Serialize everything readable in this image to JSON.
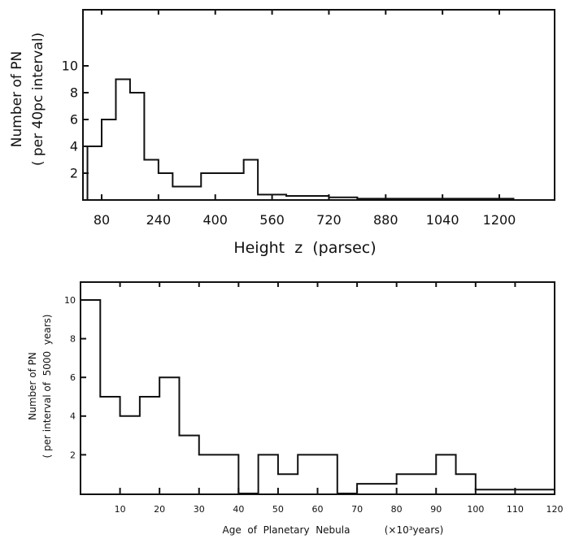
{
  "chart_data": [
    {
      "type": "bar",
      "style": "histogram-step",
      "xlabel": "Height  z  (parsec)",
      "ylabel": "Number of PN",
      "ylabel2": "( per 40pc interval)",
      "x_ticks": [
        80,
        240,
        400,
        560,
        720,
        880,
        1040,
        1200
      ],
      "y_ticks": [
        2,
        4,
        6,
        8,
        10
      ],
      "xlim": [
        40,
        1300
      ],
      "ylim": [
        0,
        12
      ],
      "bins": [
        {
          "x0": 40,
          "x1": 80,
          "value": 4
        },
        {
          "x0": 80,
          "x1": 120,
          "value": 6
        },
        {
          "x0": 120,
          "x1": 160,
          "value": 9
        },
        {
          "x0": 160,
          "x1": 200,
          "value": 8
        },
        {
          "x0": 200,
          "x1": 240,
          "value": 3
        },
        {
          "x0": 240,
          "x1": 280,
          "value": 2
        },
        {
          "x0": 280,
          "x1": 360,
          "value": 1
        },
        {
          "x0": 360,
          "x1": 480,
          "value": 2
        },
        {
          "x0": 480,
          "x1": 520,
          "value": 3
        },
        {
          "x0": 520,
          "x1": 600,
          "value": 0.4
        },
        {
          "x0": 600,
          "x1": 720,
          "value": 0.3
        },
        {
          "x0": 720,
          "x1": 800,
          "value": 0.2
        },
        {
          "x0": 800,
          "x1": 1240,
          "value": 0.1
        }
      ]
    },
    {
      "type": "bar",
      "style": "histogram-step",
      "xlabel": "Age  of  Planetary  Nebula",
      "xlabel_unit": "(×10³years)",
      "ylabel": "Number of PN",
      "ylabel2": "( per interval of  5000  years)",
      "x_ticks": [
        10,
        20,
        30,
        40,
        50,
        60,
        70,
        80,
        90,
        100,
        110,
        120
      ],
      "y_ticks": [
        2,
        4,
        6,
        8,
        10
      ],
      "xlim": [
        0,
        120
      ],
      "ylim": [
        0,
        11
      ],
      "bins": [
        {
          "x0": 0,
          "x1": 5,
          "value": 10
        },
        {
          "x0": 5,
          "x1": 10,
          "value": 5
        },
        {
          "x0": 10,
          "x1": 15,
          "value": 4
        },
        {
          "x0": 15,
          "x1": 20,
          "value": 5
        },
        {
          "x0": 20,
          "x1": 25,
          "value": 6
        },
        {
          "x0": 25,
          "x1": 30,
          "value": 3
        },
        {
          "x0": 30,
          "x1": 40,
          "value": 2
        },
        {
          "x0": 40,
          "x1": 45,
          "value": 0
        },
        {
          "x0": 45,
          "x1": 50,
          "value": 2
        },
        {
          "x0": 50,
          "x1": 55,
          "value": 1
        },
        {
          "x0": 55,
          "x1": 65,
          "value": 2
        },
        {
          "x0": 65,
          "x1": 70,
          "value": 0
        },
        {
          "x0": 70,
          "x1": 80,
          "value": 0.5
        },
        {
          "x0": 80,
          "x1": 90,
          "value": 1
        },
        {
          "x0": 90,
          "x1": 95,
          "value": 2
        },
        {
          "x0": 95,
          "x1": 100,
          "value": 1
        },
        {
          "x0": 100,
          "x1": 120,
          "value": 0.2
        }
      ]
    }
  ]
}
